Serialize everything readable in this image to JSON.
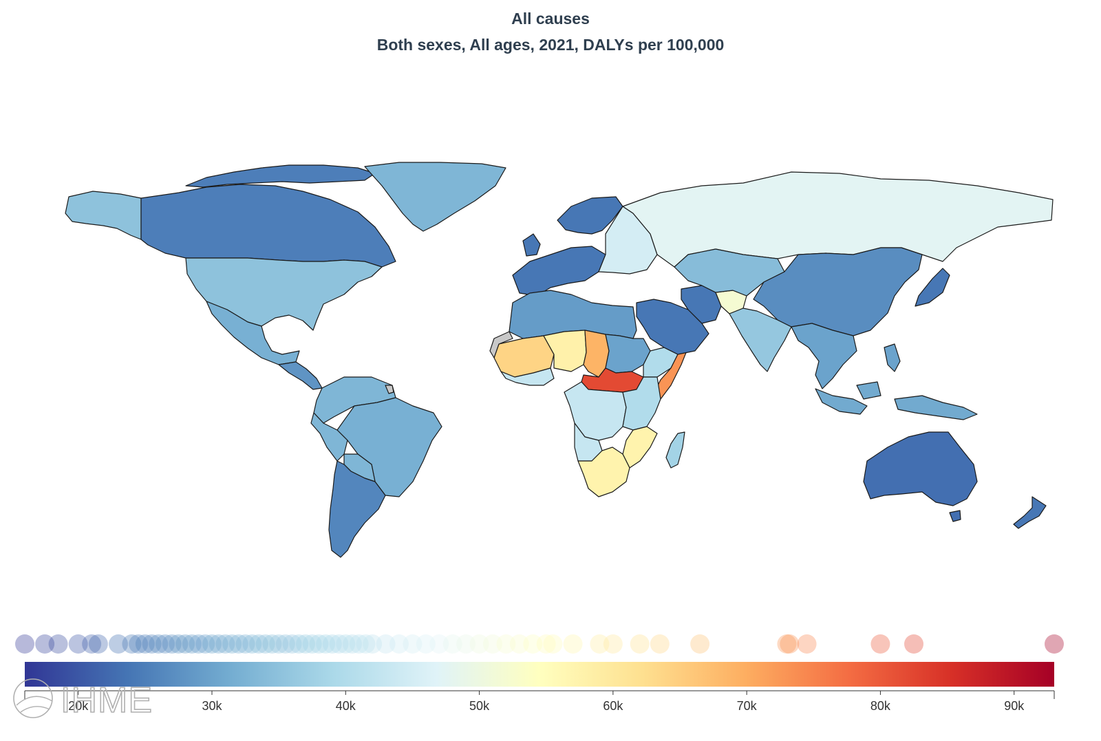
{
  "header": {
    "title": "All causes",
    "subtitle": "Both sexes, All ages, 2021, DALYs per 100,000"
  },
  "logo": {
    "text": "IHME"
  },
  "colors": {
    "scale": [
      "#313695",
      "#4575b4",
      "#74add1",
      "#abd9e9",
      "#e0f3f8",
      "#ffffbf",
      "#fee090",
      "#fdae61",
      "#f46d43",
      "#d73027",
      "#a50026"
    ],
    "no_data": "#c8c8c8",
    "border": "#1a1a1a"
  },
  "chart_data": {
    "type": "choropleth",
    "measure": "DALYs per 100,000",
    "scale_range": [
      16000,
      93000
    ],
    "tick_values": [
      20000,
      30000,
      40000,
      50000,
      60000,
      70000,
      80000,
      90000
    ],
    "tick_labels": [
      "20k",
      "30k",
      "40k",
      "50k",
      "60k",
      "70k",
      "80k",
      "90k"
    ],
    "distribution_values": [
      16000,
      17500,
      18500,
      20000,
      21000,
      21500,
      23000,
      24000,
      24500,
      25000,
      25500,
      26000,
      26500,
      27000,
      27500,
      28000,
      28500,
      29000,
      29500,
      30000,
      30500,
      31000,
      31500,
      32000,
      32500,
      33000,
      33500,
      34000,
      34500,
      35000,
      35500,
      36000,
      36500,
      37000,
      37500,
      38000,
      38500,
      39000,
      39500,
      40000,
      40500,
      41000,
      41500,
      42000,
      43000,
      44000,
      45000,
      46000,
      47000,
      48000,
      49000,
      50000,
      51000,
      52000,
      53000,
      54000,
      55000,
      55500,
      57000,
      59000,
      60000,
      62000,
      63500,
      66500,
      73000,
      73200,
      74500,
      80000,
      82500,
      93000
    ],
    "regions": [
      {
        "name": "Canada",
        "value": 25000
      },
      {
        "name": "United States",
        "value": 35000
      },
      {
        "name": "Alaska",
        "value": 35000
      },
      {
        "name": "Greenland",
        "value": 33000
      },
      {
        "name": "Mexico",
        "value": 32000
      },
      {
        "name": "Central America",
        "value": 28000
      },
      {
        "name": "South America",
        "value": 33000
      },
      {
        "name": "Brazil",
        "value": 32000
      },
      {
        "name": "Argentina and Chile",
        "value": 26000
      },
      {
        "name": "Western Europe",
        "value": 24000
      },
      {
        "name": "Eastern Europe",
        "value": 45000
      },
      {
        "name": "Russia",
        "value": 47500
      },
      {
        "name": "North Africa",
        "value": 29000
      },
      {
        "name": "Sahel West",
        "value": 64000
      },
      {
        "name": "Sahel Central",
        "value": 58000
      },
      {
        "name": "Chad",
        "value": 69000
      },
      {
        "name": "Sudan",
        "value": 30000
      },
      {
        "name": "South Sudan and CAR",
        "value": 82000
      },
      {
        "name": "Somalia",
        "value": 73000
      },
      {
        "name": "Central Africa",
        "value": 43000
      },
      {
        "name": "East Africa",
        "value": 40000
      },
      {
        "name": "Southern Africa",
        "value": 57500
      },
      {
        "name": "Madagascar",
        "value": 38000
      },
      {
        "name": "Middle East",
        "value": 24000
      },
      {
        "name": "Afghanistan",
        "value": 52000
      },
      {
        "name": "Central Asia",
        "value": 34000
      },
      {
        "name": "India",
        "value": 36000
      },
      {
        "name": "China",
        "value": 27000
      },
      {
        "name": "Southeast Asia",
        "value": 30000
      },
      {
        "name": "Japan",
        "value": 24000
      },
      {
        "name": "Indonesia",
        "value": 31000
      },
      {
        "name": "Australia",
        "value": 23000
      },
      {
        "name": "New Zealand",
        "value": 24000
      }
    ]
  }
}
